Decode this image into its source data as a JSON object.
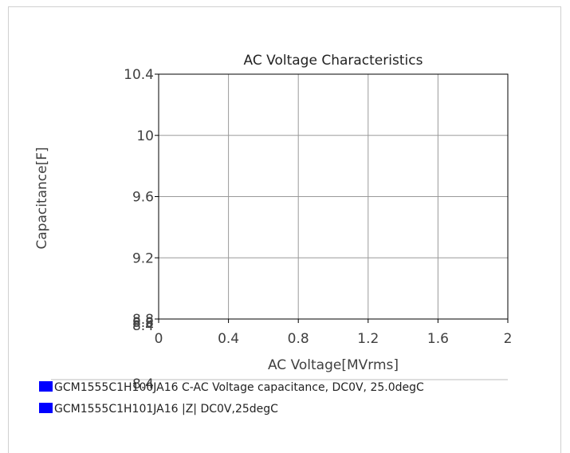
{
  "chart_data": {
    "type": "line",
    "title": "AC Voltage Characteristics",
    "xlabel": "AC Voltage[MVrms]",
    "ylabel": "Capacitance[F]",
    "xlim": [
      0,
      2
    ],
    "ylim": [
      8.8,
      10.4
    ],
    "x_ticks": [
      0,
      0.4,
      0.8,
      1.2,
      1.6,
      2
    ],
    "x_tick_labels": [
      "0",
      "0.4",
      "0.8",
      "1.2",
      "1.6",
      "2"
    ],
    "y_ticks": [
      8.8,
      9.2,
      9.6,
      10,
      10.4
    ],
    "y_tick_labels": [
      "8.8",
      "9.2",
      "9.6",
      "10",
      "10.4"
    ],
    "extra_y_tick_labels": [
      "8.4",
      "8.8",
      "8.4"
    ],
    "grid": true,
    "series": [
      {
        "name": "GCM1555C1H100JA16 C-AC Voltage capacitance, DC0V, 25.0degC",
        "color": "#0000ff",
        "x": [],
        "y": []
      },
      {
        "name": "GCM1555C1H101JA16 |Z| DC0V,25degC",
        "color": "#0000ff",
        "x": [],
        "y": []
      }
    ],
    "legend_placement": "bottom-left"
  }
}
